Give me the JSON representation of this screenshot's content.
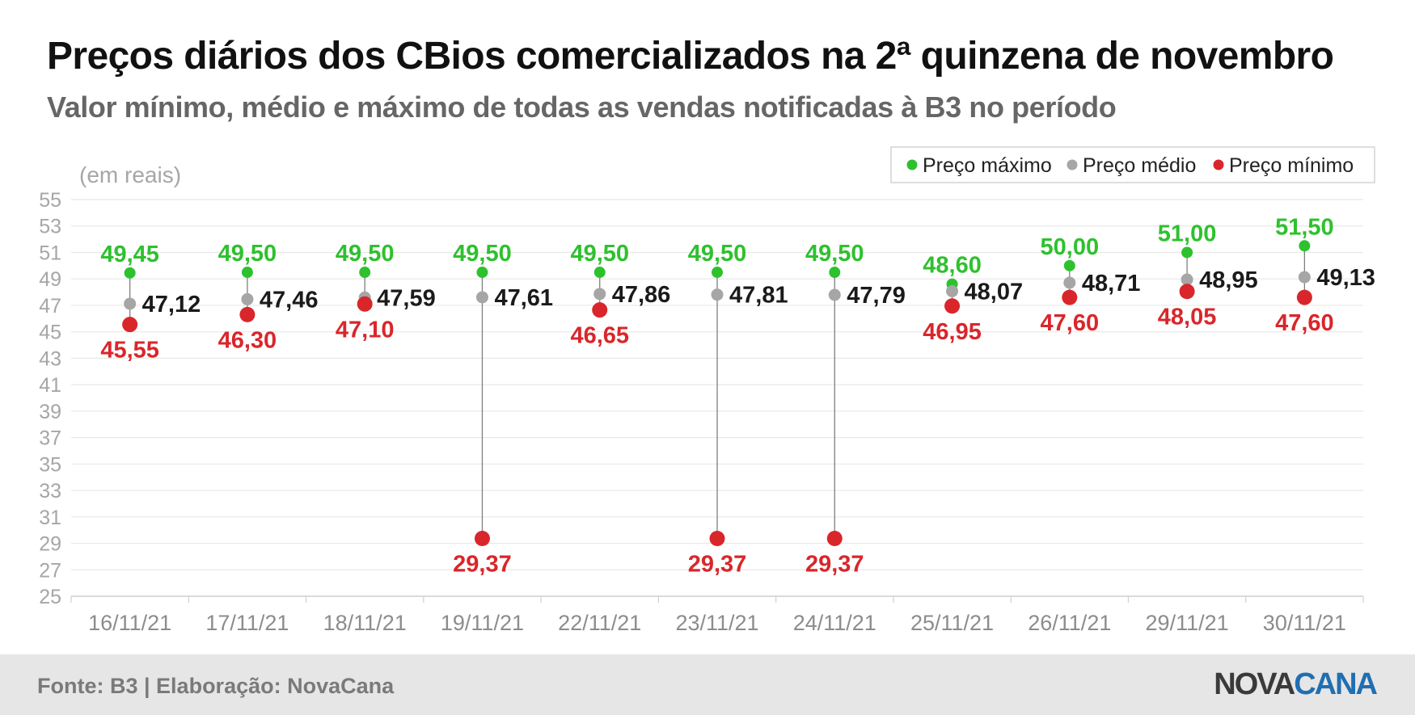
{
  "title": "Preços diários dos CBios comercializados na 2ª quinzena de novembro",
  "subtitle": "Valor mínimo, médio e máximo de todas as vendas notificadas à B3 no período",
  "source": "Fonte: B3 | Elaboração: NovaCana",
  "logo": {
    "part1": "NOVA",
    "part2": "CANA"
  },
  "colors": {
    "max": "#2ec12e",
    "avg": "#a6a6a6",
    "min": "#d9262b",
    "avg_label": "#1a1a1a",
    "grid": "#e8e8e8",
    "axis_text": "#a6a6a6",
    "stem": "#7f7f7f"
  },
  "chart_data": {
    "type": "scatter",
    "title": "Preços diários dos CBios comercializados na 2ª quinzena de novembro",
    "subtitle": "Valor mínimo, médio e máximo de todas as vendas notificadas à B3 no período",
    "ylabel": "(em reais)",
    "ylim": [
      25,
      55
    ],
    "yticks": [
      25,
      27,
      29,
      31,
      33,
      35,
      37,
      39,
      41,
      43,
      45,
      47,
      49,
      51,
      53,
      55
    ],
    "grid": true,
    "legend_position": "top-right",
    "categories": [
      "16/11/21",
      "17/11/21",
      "18/11/21",
      "19/11/21",
      "22/11/21",
      "23/11/21",
      "24/11/21",
      "25/11/21",
      "26/11/21",
      "29/11/21",
      "30/11/21"
    ],
    "series": [
      {
        "name": "Preço máximo",
        "key": "max",
        "values": [
          49.45,
          49.5,
          49.5,
          49.5,
          49.5,
          49.5,
          49.5,
          48.6,
          50.0,
          51.0,
          51.5
        ],
        "labels": [
          "49,45",
          "49,50",
          "49,50",
          "49,50",
          "49,50",
          "49,50",
          "49,50",
          "48,60",
          "50,00",
          "51,00",
          "51,50"
        ]
      },
      {
        "name": "Preço médio",
        "key": "avg",
        "values": [
          47.12,
          47.46,
          47.59,
          47.61,
          47.86,
          47.81,
          47.79,
          48.07,
          48.71,
          48.95,
          49.13
        ],
        "labels": [
          "47,12",
          "47,46",
          "47,59",
          "47,61",
          "47,86",
          "47,81",
          "47,79",
          "48,07",
          "48,71",
          "48,95",
          "49,13"
        ]
      },
      {
        "name": "Preço mínimo",
        "key": "min",
        "values": [
          45.55,
          46.3,
          47.1,
          29.37,
          46.65,
          29.37,
          29.37,
          46.95,
          47.6,
          48.05,
          47.6
        ],
        "labels": [
          "45,55",
          "46,30",
          "47,10",
          "29,37",
          "46,65",
          "29,37",
          "29,37",
          "46,95",
          "47,60",
          "48,05",
          "47,60"
        ]
      }
    ]
  }
}
